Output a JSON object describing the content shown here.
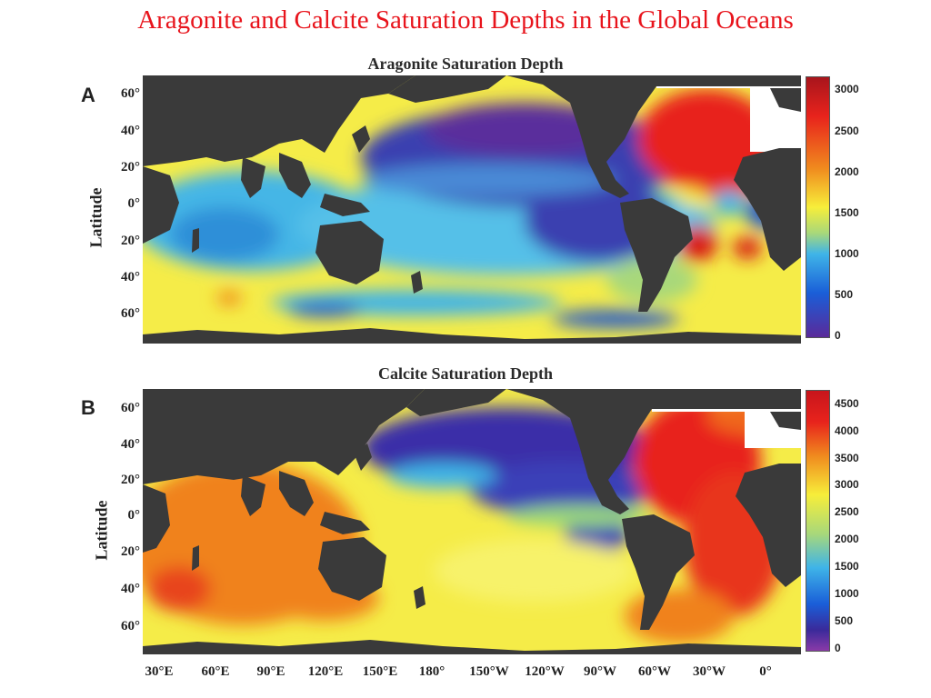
{
  "title": "Aragonite and Calcite Saturation Depths in the Global Oceans",
  "panels": [
    {
      "letter": "A",
      "title": "Aragonite Saturation Depth",
      "ylabel": "Latitude",
      "lat_ticks": [
        "60°",
        "40°",
        "20°",
        "0°",
        "20°",
        "40°",
        "60°"
      ],
      "colorbar_ticks": [
        "3000",
        "2500",
        "2000",
        "1500",
        "1000",
        "500",
        "0"
      ],
      "colorbar_range": [
        0,
        3000
      ]
    },
    {
      "letter": "B",
      "title": "Calcite Saturation Depth",
      "ylabel": "Latitude",
      "lat_ticks": [
        "60°",
        "40°",
        "20°",
        "0°",
        "20°",
        "40°",
        "60°"
      ],
      "colorbar_ticks": [
        "4500",
        "4000",
        "3500",
        "3000",
        "2500",
        "2000",
        "1500",
        "1000",
        "500",
        "0"
      ],
      "colorbar_range": [
        0,
        4500
      ]
    }
  ],
  "lon_ticks": [
    "30°E",
    "60°E",
    "90°E",
    "120°E",
    "150°E",
    "180°",
    "150°W",
    "120°W",
    "90°W",
    "60°W",
    "30°W",
    "0°"
  ],
  "colors": {
    "title": "#e8141c",
    "land": "#3a3a3a",
    "deep_red": "#a8151c",
    "red": "#e8231c",
    "orange": "#f08a1e",
    "yellow": "#f7ee3a",
    "light_blue": "#3fb4e8",
    "blue": "#2a5cc8",
    "purple": "#5a2a9a"
  }
}
